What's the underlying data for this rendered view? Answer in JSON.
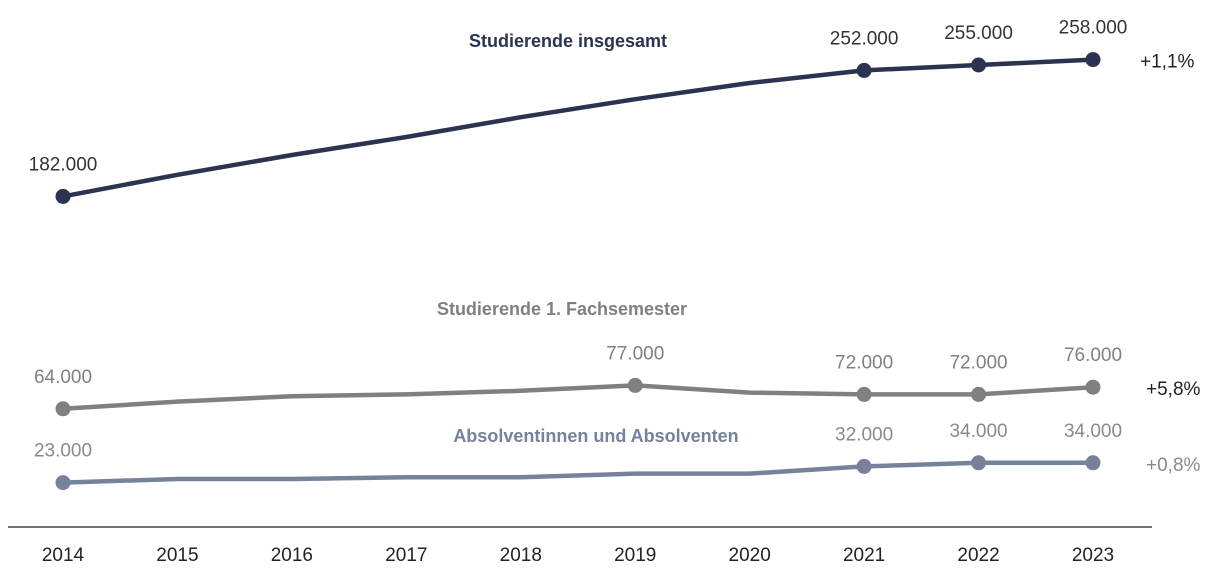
{
  "chart_data": {
    "type": "line",
    "categories": [
      "2014",
      "2015",
      "2016",
      "2017",
      "2018",
      "2019",
      "2020",
      "2021",
      "2022",
      "2023"
    ],
    "ylim": [
      0,
      280000
    ],
    "series": [
      {
        "name": "Studierende insgesamt",
        "color": "#2b3350",
        "label_color": "#333333",
        "change": "+1,1%",
        "change_color": "#222222",
        "values": [
          182000,
          194000,
          205000,
          215000,
          226000,
          236000,
          245000,
          252000,
          255000,
          258000
        ],
        "value_labels": [
          "182.000",
          null,
          null,
          null,
          null,
          null,
          null,
          "252.000",
          "255.000",
          "258.000"
        ]
      },
      {
        "name": "Studierende 1. Fachsemester",
        "color": "#808080",
        "label_color": "#808080",
        "change": "+5,8%",
        "change_color": "#222222",
        "values": [
          64000,
          68000,
          71000,
          72000,
          74000,
          77000,
          73000,
          72000,
          72000,
          76000
        ],
        "value_labels": [
          "64.000",
          null,
          null,
          null,
          null,
          "77.000",
          null,
          "72.000",
          "72.000",
          "76.000"
        ]
      },
      {
        "name": "Absolventinnen und Absolventen",
        "color": "#76829a",
        "label_color": "#8a8a8a",
        "change": "+0,8%",
        "change_color": "#8a8a8a",
        "values": [
          23000,
          25000,
          25000,
          26000,
          26000,
          28000,
          28000,
          32000,
          34000,
          34000
        ],
        "value_labels": [
          "23.000",
          null,
          null,
          null,
          null,
          null,
          null,
          "32.000",
          "34.000",
          "34.000"
        ]
      }
    ]
  }
}
